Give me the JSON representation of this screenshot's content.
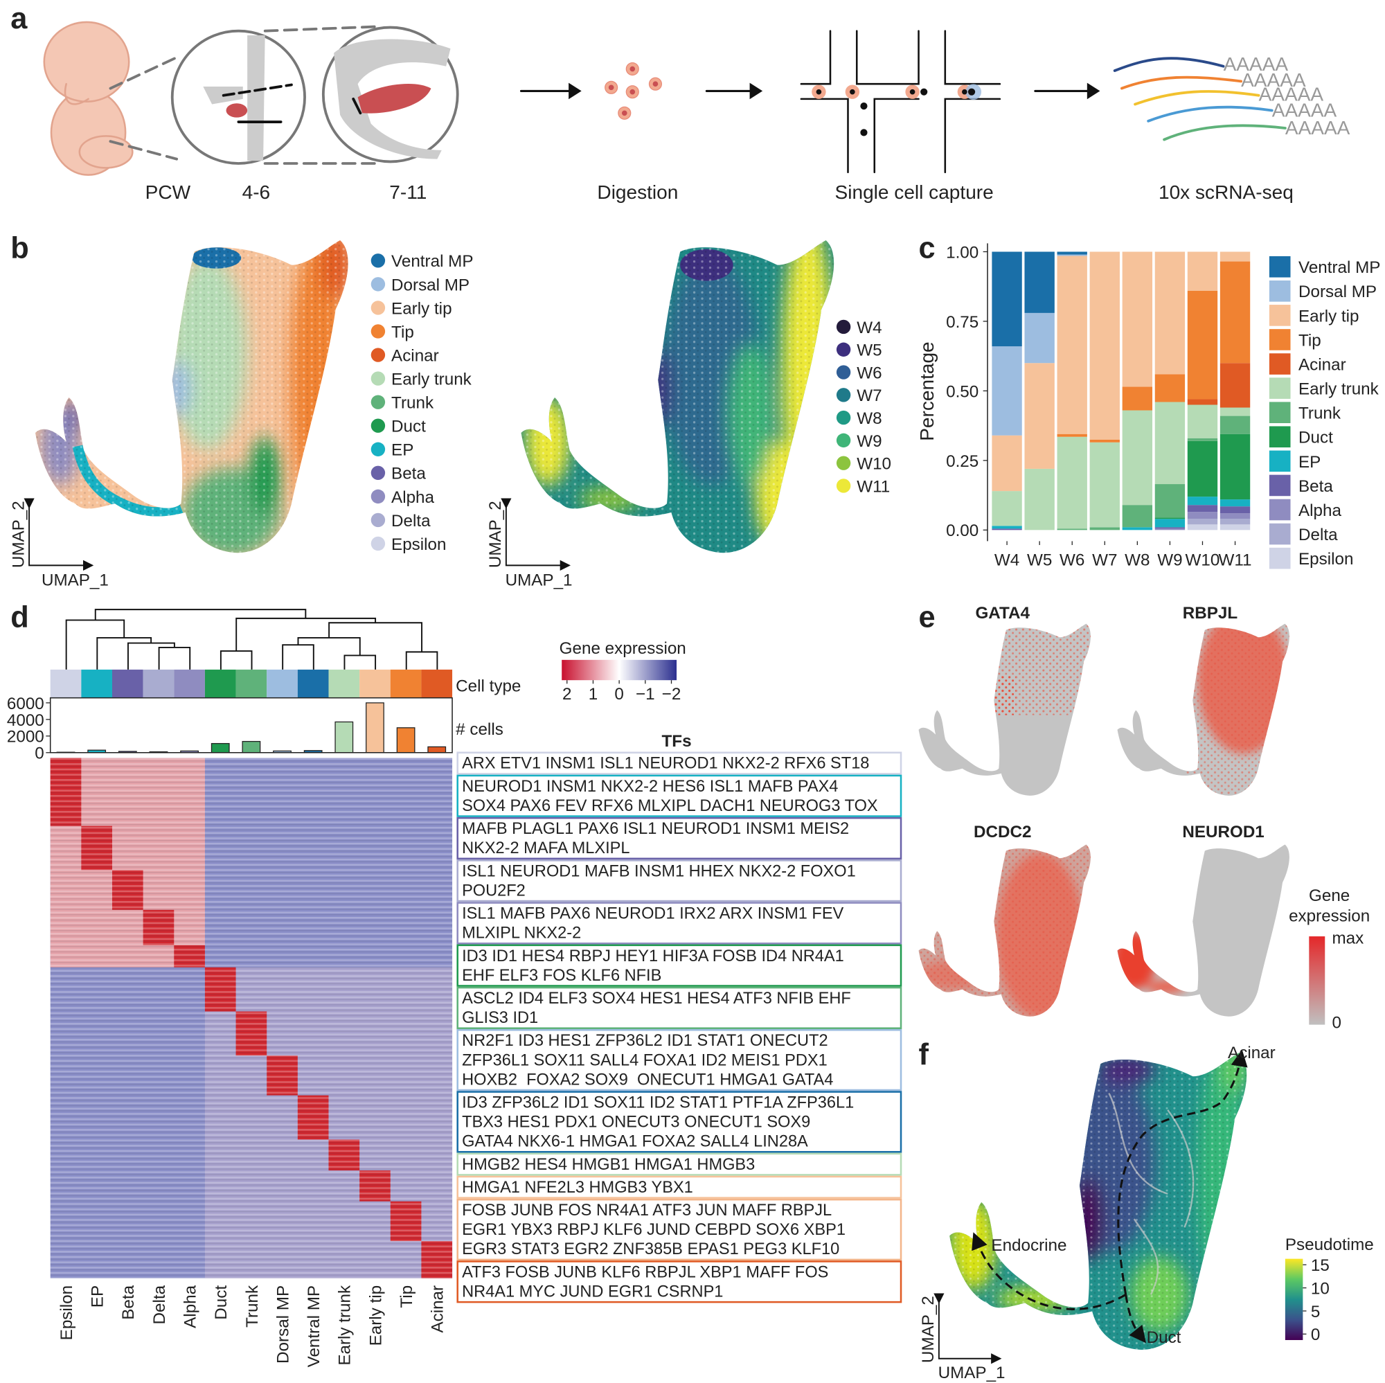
{
  "panel_labels": [
    "a",
    "b",
    "c",
    "d",
    "e",
    "f"
  ],
  "panel_a": {
    "stages": [
      "PCW",
      "4-6",
      "7-11"
    ],
    "steps": [
      "Digestion",
      "Single cell capture",
      "10x scRNA-seq"
    ],
    "poly_a": [
      "AAAAA",
      "AAAAA",
      "AAAAA",
      "AAAAA",
      "AAAAA"
    ]
  },
  "panel_b": {
    "x_label": "UMAP_1",
    "y_label": "UMAP_2",
    "cell_types": [
      {
        "name": "Ventral MP",
        "color": "#1a6fa8"
      },
      {
        "name": "Dorsal MP",
        "color": "#9dbde0"
      },
      {
        "name": "Early tip",
        "color": "#f6c29a"
      },
      {
        "name": "Tip",
        "color": "#f08232"
      },
      {
        "name": "Acinar",
        "color": "#e05a24"
      },
      {
        "name": "Early trunk",
        "color": "#b5dbb5"
      },
      {
        "name": "Trunk",
        "color": "#5fb27a"
      },
      {
        "name": "Duct",
        "color": "#1f9a4f"
      },
      {
        "name": "EP",
        "color": "#17b1c3"
      },
      {
        "name": "Beta",
        "color": "#6961a8"
      },
      {
        "name": "Alpha",
        "color": "#8f8cc0"
      },
      {
        "name": "Delta",
        "color": "#a9acd0"
      },
      {
        "name": "Epsilon",
        "color": "#cfd3e6"
      }
    ],
    "weeks": [
      {
        "name": "W4",
        "color": "#231b3b"
      },
      {
        "name": "W5",
        "color": "#3d2f7e"
      },
      {
        "name": "W6",
        "color": "#2f5e96"
      },
      {
        "name": "W7",
        "color": "#1f7a8a"
      },
      {
        "name": "W8",
        "color": "#1f9a85"
      },
      {
        "name": "W9",
        "color": "#3fb578"
      },
      {
        "name": "W10",
        "color": "#8cc43e"
      },
      {
        "name": "W11",
        "color": "#ece838"
      }
    ]
  },
  "chart_data": [
    {
      "type": "stacked_bar",
      "y_label": "Percentage",
      "legend": "right",
      "categories": [
        "W4",
        "W5",
        "W6",
        "W7",
        "W8",
        "W9",
        "W10",
        "W11"
      ],
      "ylim": [
        -0.04,
        1.03
      ],
      "yticks": [
        {
          "value": 0,
          "label": "0.00"
        },
        {
          "value": 0.25,
          "label": "0.25"
        },
        {
          "value": 0.5,
          "label": "0.50"
        },
        {
          "value": 0.75,
          "label": "0.75"
        },
        {
          "value": 1,
          "label": "1.00"
        }
      ],
      "series": [
        {
          "name": "Ventral MP",
          "color": "#1a6fa8",
          "values": [
            0.34,
            0.22,
            0.01,
            0,
            0,
            0,
            0,
            0
          ]
        },
        {
          "name": "Dorsal MP",
          "color": "#9dbde0",
          "values": [
            0.32,
            0.18,
            0.005,
            0,
            0,
            0,
            0,
            0
          ]
        },
        {
          "name": "Early tip",
          "color": "#f6c29a",
          "values": [
            0.2,
            0.38,
            0.64,
            0.675,
            0.485,
            0.44,
            0.14,
            0.035
          ]
        },
        {
          "name": "Tip",
          "color": "#f08232",
          "values": [
            0,
            0,
            0.01,
            0.01,
            0.085,
            0.1,
            0.39,
            0.365
          ]
        },
        {
          "name": "Acinar",
          "color": "#e05a24",
          "values": [
            0,
            0,
            0,
            0,
            0,
            0,
            0.02,
            0.16
          ]
        },
        {
          "name": "Early trunk",
          "color": "#b5dbb5",
          "values": [
            0.125,
            0.22,
            0.33,
            0.305,
            0.34,
            0.295,
            0.12,
            0.03
          ]
        },
        {
          "name": "Trunk",
          "color": "#5fb27a",
          "values": [
            0,
            0,
            0.005,
            0.01,
            0.08,
            0.12,
            0.01,
            0.065
          ]
        },
        {
          "name": "Duct",
          "color": "#1f9a4f",
          "values": [
            0,
            0,
            0,
            0,
            0,
            0.005,
            0.2,
            0.235
          ]
        },
        {
          "name": "EP",
          "color": "#17b1c3",
          "values": [
            0.01,
            0,
            0,
            0,
            0.01,
            0.03,
            0.03,
            0.025
          ]
        },
        {
          "name": "Beta",
          "color": "#6961a8",
          "values": [
            0.005,
            0,
            0,
            0,
            0,
            0.005,
            0.025,
            0.025
          ]
        },
        {
          "name": "Alpha",
          "color": "#8f8cc0",
          "values": [
            0,
            0,
            0,
            0,
            0,
            0.005,
            0.025,
            0.02
          ]
        },
        {
          "name": "Delta",
          "color": "#a9acd0",
          "values": [
            0,
            0,
            0,
            0,
            0,
            0,
            0.02,
            0.02
          ]
        },
        {
          "name": "Epsilon",
          "color": "#cfd3e6",
          "values": [
            0,
            0,
            0,
            0,
            0,
            0,
            0.02,
            0.02
          ]
        }
      ]
    },
    {
      "type": "bar",
      "y_label": "# cells",
      "strip_label": "Cell type",
      "categories": [
        "Epsilon",
        "EP",
        "Beta",
        "Delta",
        "Alpha",
        "Duct",
        "Trunk",
        "Dorsal MP",
        "Ventral MP",
        "Early trunk",
        "Early tip",
        "Tip",
        "Acinar"
      ],
      "values": [
        50,
        300,
        150,
        100,
        200,
        1100,
        1350,
        200,
        250,
        3700,
        6000,
        3000,
        700
      ],
      "colors": [
        "#cfd3e6",
        "#17b1c3",
        "#6961a8",
        "#a9acd0",
        "#8f8cc0",
        "#1f9a4f",
        "#5fb27a",
        "#9dbde0",
        "#1a6fa8",
        "#b5dbb5",
        "#f6c29a",
        "#f08232",
        "#e05a24"
      ],
      "ylim": [
        0,
        6600
      ],
      "yticks": [
        0,
        2000,
        4000,
        6000
      ]
    },
    {
      "type": "colorbar",
      "orientation": "horizontal",
      "title": "Gene expression",
      "lim": [
        2.2,
        -2.2
      ],
      "ticks": [
        2,
        1,
        0,
        {
          "value": -1,
          "label": "−1"
        },
        {
          "value": -2,
          "label": "−2"
        }
      ],
      "colors": [
        "#c8102e",
        "#ffffff",
        "#2b2f8f"
      ]
    },
    {
      "type": "colorbar",
      "orientation": "vertical",
      "title": "Pseudotime",
      "lim": [
        -1.3,
        16.3
      ],
      "ticks": [
        0,
        5,
        10,
        15
      ],
      "colors": [
        "#440154",
        "#3b528b",
        "#21918c",
        "#5ec962",
        "#fde725"
      ]
    }
  ],
  "panel_d": {
    "tfs_title": "TFs",
    "tf_sets": [
      {
        "color": "#cfd3e6",
        "lines": [
          "ARX ETV1 INSM1 ISL1 NEUROD1 NKX2-2 RFX6 ST18"
        ]
      },
      {
        "color": "#17b1c3",
        "lines": [
          "NEUROD1 INSM1 NKX2-2 HES6 ISL1 MAFB PAX4",
          "SOX4 PAX6 FEV RFX6 MLXIPL DACH1 NEUROG3 TOX"
        ]
      },
      {
        "color": "#6961a8",
        "lines": [
          "MAFB PLAGL1 PAX6 ISL1 NEUROD1 INSM1 MEIS2",
          "NKX2-2 MAFA MLXIPL"
        ]
      },
      {
        "color": "#a9acd0",
        "lines": [
          "ISL1 NEUROD1 MAFB INSM1 HHEX NKX2-2 FOXO1",
          "POU2F2"
        ]
      },
      {
        "color": "#8f8cc0",
        "lines": [
          "ISL1 MAFB PAX6 NEUROD1 IRX2 ARX INSM1 FEV",
          "MLXIPL NKX2-2"
        ]
      },
      {
        "color": "#1f9a4f",
        "lines": [
          "ID3 ID1 HES4 RBPJ HEY1 HIF3A FOSB ID4 NR4A1",
          "EHF ELF3 FOS KLF6 NFIB"
        ]
      },
      {
        "color": "#5fb27a",
        "lines": [
          "ASCL2 ID4 ELF3 SOX4 HES1 HES4 ATF3 NFIB EHF",
          "GLIS3 ID1"
        ]
      },
      {
        "color": "#9dbde0",
        "lines": [
          "NR2F1 ID3 HES1 ZFP36L2 ID1 STAT1 ONECUT2",
          "ZFP36L1 SOX11 SALL4 FOXA1 ID2 MEIS1 PDX1",
          "HOXB2  FOXA2 SOX9  ONECUT1 HMGA1 GATA4"
        ]
      },
      {
        "color": "#1a6fa8",
        "lines": [
          "ID3 ZFP36L2 ID1 SOX11 ID2 STAT1 PTF1A ZFP36L1",
          "TBX3 HES1 PDX1 ONECUT3 ONECUT1 SOX9",
          "GATA4 NKX6-1 HMGA1 FOXA2 SALL4 LIN28A"
        ]
      },
      {
        "color": "#b5dbb5",
        "lines": [
          "HMGB2 HES4 HMGB1 HMGA1 HMGB3"
        ]
      },
      {
        "color": "#f6c29a",
        "lines": [
          "HMGA1 NFE2L3 HMGB3 YBX1"
        ]
      },
      {
        "color": "#f3b58a",
        "lines": [
          "FOSB JUNB FOS NR4A1 ATF3 JUN MAFF RBPJL",
          "EGR1 YBX3 RBPJ KLF6 JUND CEBPD SOX6 XBP1",
          "EGR3 STAT3 EGR2 ZNF385B EPAS1 PEG3 KLF10"
        ]
      },
      {
        "color": "#e05a24",
        "lines": [
          "ATF3 FOSB JUNB KLF6 RBPJL XBP1 MAFF FOS",
          "NR4A1 MYC JUND EGR1 CSRNP1"
        ]
      }
    ]
  },
  "panel_e": {
    "genes": [
      "GATA4",
      "RBPJL",
      "DCDC2",
      "NEUROD1"
    ],
    "legend_title": [
      "Gene",
      "expression"
    ],
    "legend_max": "max",
    "legend_min": "0"
  },
  "panel_f": {
    "annotations": [
      "Acinar",
      "Endocrine",
      "Duct"
    ]
  }
}
